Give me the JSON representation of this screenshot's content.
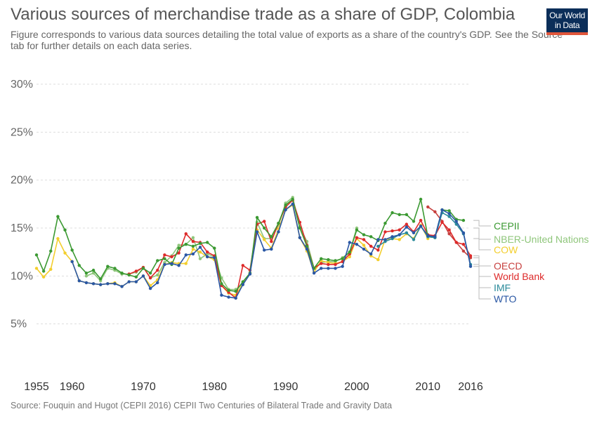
{
  "chart_data": {
    "type": "line",
    "title": "Various sources of merchandise trade as a share of GDP, Colombia",
    "subtitle": "Figure corresponds to various data sources detailing the total value of exports as a share of the country's GDP. See the Source tab for further details on each data series.",
    "source": "Source: Fouquin and Hugot (CEPII 2016) CEPII Two Centuries of Bilateral Trade and Gravity Data",
    "xlim": [
      1955,
      2016
    ],
    "ylim": [
      0,
      30
    ],
    "x_ticks": [
      {
        "value": 1955,
        "label": "1955"
      },
      {
        "value": 1960,
        "label": "1960"
      },
      {
        "value": 1970,
        "label": "1970"
      },
      {
        "value": 1980,
        "label": "1980"
      },
      {
        "value": 1990,
        "label": "1990"
      },
      {
        "value": 2000,
        "label": "2000"
      },
      {
        "value": 2010,
        "label": "2010"
      },
      {
        "value": 2016,
        "label": "2016"
      }
    ],
    "y_ticks": [
      {
        "value": 5,
        "label": "5%"
      },
      {
        "value": 10,
        "label": "10%"
      },
      {
        "value": 15,
        "label": "15%"
      },
      {
        "value": 20,
        "label": "20%"
      },
      {
        "value": 25,
        "label": "25%"
      },
      {
        "value": 30,
        "label": "30%"
      }
    ],
    "grid": "horizontal-dashed",
    "legend_position": "right-end-labels",
    "series": [
      {
        "name": "NBER-United Nations",
        "color": "#8fc67b",
        "x": [
          1962,
          1963,
          1964,
          1965,
          1966,
          1967,
          1968,
          1969,
          1970,
          1971,
          1972,
          1973,
          1974,
          1975,
          1976,
          1977,
          1978,
          1979,
          1980,
          1981,
          1982,
          1983,
          1984,
          1985,
          1986,
          1987,
          1988,
          1989,
          1990,
          1991,
          1992,
          1993,
          1994,
          1995,
          1996,
          1997,
          1998,
          1999,
          2000
        ],
        "y": [
          10.0,
          10.3,
          9.5,
          10.8,
          10.6,
          10.2,
          10.2,
          10.4,
          10.9,
          9.8,
          10.1,
          11.4,
          12.1,
          13.2,
          13.3,
          14.0,
          11.8,
          12.3,
          12.0,
          9.8,
          8.6,
          8.6,
          9.2,
          10.3,
          15.6,
          13.9,
          13.9,
          15.3,
          17.6,
          18.2,
          15.1,
          13.6,
          10.8,
          11.4,
          11.5,
          11.5,
          11.9,
          12.5,
          15.0
        ]
      },
      {
        "name": "COW",
        "color": "#f3ce2d",
        "x": [
          1955,
          1956,
          1957,
          1958,
          1959,
          1960,
          1961,
          1962,
          1963,
          1964,
          1965,
          1966,
          1967,
          1968,
          1969,
          1970,
          1971,
          1972,
          1973,
          1974,
          1975,
          1976,
          1977,
          1978,
          1979,
          1980,
          1981,
          1982,
          1983,
          1984,
          1985,
          1986,
          1987,
          1988,
          1989,
          1990,
          1991,
          1992,
          1993,
          1994,
          1995,
          1996,
          1997,
          1998,
          1999,
          2000,
          2001,
          2002,
          2003,
          2004,
          2005,
          2006,
          2007,
          2008,
          2009,
          2010
        ],
        "y": [
          10.8,
          9.9,
          10.7,
          13.9,
          12.4,
          11.5,
          9.5,
          9.3,
          9.2,
          9.1,
          9.2,
          9.3,
          8.9,
          9.4,
          9.4,
          10.0,
          9.0,
          9.6,
          11.2,
          11.4,
          11.3,
          11.3,
          12.8,
          12.5,
          12.0,
          11.7,
          9.0,
          8.2,
          8.0,
          9.2,
          10.3,
          14.8,
          13.8,
          12.9,
          14.9,
          16.9,
          17.4,
          14.0,
          12.6,
          10.4,
          11.6,
          11.4,
          11.3,
          11.5,
          12.0,
          13.9,
          13.2,
          12.1,
          11.7,
          13.8,
          13.9,
          13.8,
          14.4,
          13.9,
          15.3,
          13.9
        ]
      },
      {
        "name": "OECD",
        "color": "#c7403f",
        "x": [
          2010,
          2011,
          2012,
          2013,
          2014,
          2015,
          2016
        ],
        "y": [
          17.2,
          16.7,
          15.7,
          14.4,
          13.5,
          12.6,
          11.9
        ]
      },
      {
        "name": "World Bank",
        "color": "#dd2a2a",
        "x": [
          1968,
          1969,
          1970,
          1971,
          1972,
          1973,
          1974,
          1975,
          1976,
          1977,
          1978,
          1979,
          1980,
          1981,
          1982,
          1983,
          1984,
          1985,
          1986,
          1987,
          1988,
          1989,
          1990,
          1991,
          1992,
          1993,
          1994,
          1995,
          1996,
          1997,
          1998,
          1999,
          2000,
          2001,
          2002,
          2003,
          2004,
          2005,
          2006,
          2007,
          2008,
          2009,
          2010,
          2011,
          2012,
          2013,
          2014,
          2015,
          2016
        ],
        "y": [
          10.2,
          10.5,
          10.9,
          9.8,
          10.6,
          12.2,
          12.0,
          12.4,
          14.4,
          13.6,
          13.5,
          12.5,
          12.1,
          9.0,
          8.3,
          7.7,
          11.1,
          10.6,
          15.4,
          15.7,
          13.6,
          15.5,
          17.2,
          17.9,
          15.6,
          13.2,
          10.8,
          11.3,
          11.2,
          11.2,
          11.5,
          12.3,
          14.0,
          13.8,
          13.1,
          12.7,
          14.6,
          14.7,
          14.8,
          15.4,
          14.6,
          15.8,
          14.3,
          14.2,
          15.6,
          14.8,
          13.5,
          13.3,
          12.1
        ]
      },
      {
        "name": "CEPII",
        "color": "#3b9932",
        "x": [
          1955,
          1956,
          1957,
          1958,
          1959,
          1960,
          1961,
          1962,
          1963,
          1964,
          1965,
          1966,
          1967,
          1968,
          1969,
          1970,
          1971,
          1972,
          1973,
          1974,
          1975,
          1976,
          1977,
          1978,
          1979,
          1980,
          1981,
          1982,
          1983,
          1984,
          1985,
          1986,
          1987,
          1988,
          1989,
          1990,
          1991,
          1992,
          1993,
          1994,
          1995,
          1996,
          1997,
          1998,
          1999,
          2000,
          2001,
          2002,
          2003,
          2004,
          2005,
          2006,
          2007,
          2008,
          2009,
          2010,
          2011,
          2012,
          2013,
          2014,
          2015
        ],
        "y": [
          12.2,
          10.5,
          12.6,
          16.2,
          14.8,
          12.7,
          11.1,
          10.3,
          10.6,
          9.7,
          11.0,
          10.8,
          10.3,
          10.1,
          9.9,
          10.8,
          10.3,
          11.6,
          11.8,
          11.2,
          12.9,
          13.3,
          13.1,
          13.4,
          13.5,
          12.9,
          9.2,
          8.5,
          8.4,
          9.4,
          10.3,
          16.1,
          15.0,
          14.1,
          15.5,
          17.4,
          18.0,
          15.0,
          13.1,
          10.8,
          11.8,
          11.7,
          11.6,
          11.8,
          12.5,
          14.8,
          14.3,
          14.1,
          13.7,
          15.5,
          16.6,
          16.4,
          16.4,
          15.7,
          18.0,
          14.1,
          14.0,
          16.9,
          16.8,
          15.9,
          15.8
        ]
      },
      {
        "name": "IMF",
        "color": "#2a8a9a",
        "x": [
          2003,
          2004,
          2005,
          2006,
          2007,
          2008,
          2009,
          2010,
          2011,
          2012,
          2013,
          2014,
          2015,
          2016
        ],
        "y": [
          13.1,
          13.6,
          13.9,
          14.3,
          14.5,
          13.8,
          15.2,
          14.1,
          14.0,
          16.6,
          16.2,
          15.4,
          14.4,
          11.2
        ]
      },
      {
        "name": "WTO",
        "color": "#2a57a4",
        "x": [
          1960,
          1961,
          1962,
          1963,
          1964,
          1965,
          1966,
          1967,
          1968,
          1969,
          1970,
          1971,
          1972,
          1973,
          1974,
          1975,
          1976,
          1977,
          1978,
          1979,
          1980,
          1981,
          1982,
          1983,
          1984,
          1985,
          1986,
          1987,
          1988,
          1989,
          1990,
          1991,
          1992,
          1993,
          1994,
          1995,
          1996,
          1997,
          1998,
          1999,
          2000,
          2001,
          2002,
          2003,
          2004,
          2005,
          2006,
          2007,
          2008,
          2009,
          2010,
          2011,
          2012,
          2013,
          2014,
          2015,
          2016
        ],
        "y": [
          11.5,
          9.5,
          9.3,
          9.2,
          9.1,
          9.2,
          9.2,
          8.9,
          9.4,
          9.4,
          10.0,
          8.7,
          9.3,
          11.2,
          11.3,
          11.1,
          12.2,
          12.3,
          13.0,
          12.0,
          11.9,
          8.0,
          7.8,
          7.7,
          9.1,
          10.2,
          14.6,
          12.7,
          12.8,
          14.6,
          16.9,
          17.5,
          14.0,
          12.8,
          10.3,
          10.8,
          10.8,
          10.8,
          11.0,
          13.5,
          13.3,
          12.8,
          12.3,
          13.8,
          13.8,
          14.1,
          14.3,
          15.1,
          14.5,
          15.2,
          14.2,
          14.1,
          16.9,
          16.5,
          15.7,
          14.5,
          11.0
        ]
      }
    ],
    "legend": [
      {
        "label": "CEPII",
        "color": "#3b9932"
      },
      {
        "label": "NBER-United Nations",
        "color": "#8fc67b"
      },
      {
        "label": "COW",
        "color": "#f3ce2d"
      },
      {
        "label": "OECD",
        "color": "#c7403f"
      },
      {
        "label": "World Bank",
        "color": "#dd2a2a"
      },
      {
        "label": "IMF",
        "color": "#2a8a9a"
      },
      {
        "label": "WTO",
        "color": "#2a57a4"
      }
    ]
  },
  "logo": {
    "line1": "Our World",
    "line2": "in Data",
    "bg_color": "#0b2e59",
    "accent_color": "#e0563b"
  }
}
